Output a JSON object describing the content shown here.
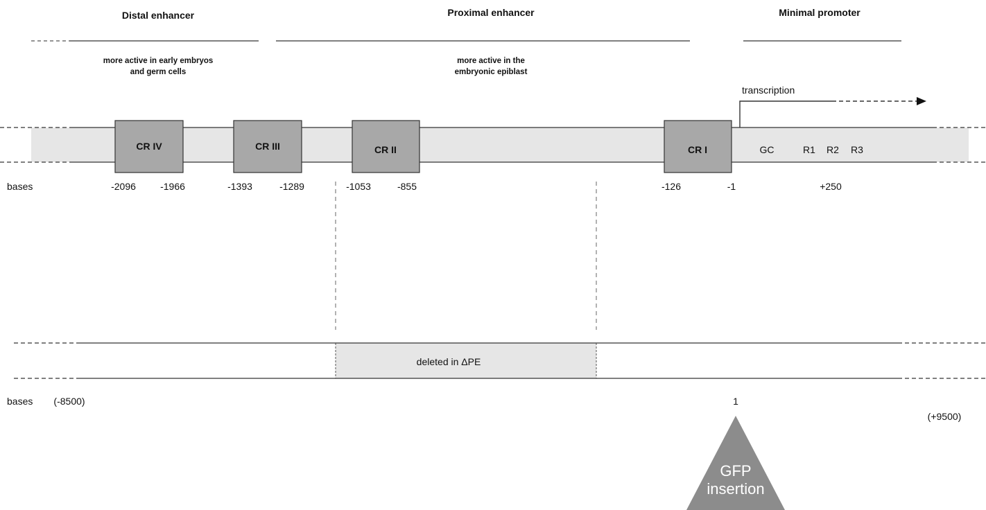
{
  "regions": [
    {
      "title": "Distal enhancer",
      "note_lines": [
        "more active in early embryos",
        "and germ cells"
      ]
    },
    {
      "title": "Proximal enhancer",
      "note_lines": [
        "more active in the",
        "embryonic epiblast"
      ]
    },
    {
      "title": "Minimal promoter",
      "note_lines": []
    }
  ],
  "conserved_regions": [
    {
      "label": "CR IV",
      "start_label": "-2096",
      "end_label": "-1966"
    },
    {
      "label": "CR III",
      "start_label": "-1393",
      "end_label": "-1289"
    },
    {
      "label": "CR II",
      "start_label": "-1053",
      "end_label": "-855"
    },
    {
      "label": "CR I",
      "start_label": "-126",
      "end_label": "-1"
    }
  ],
  "promoter_elements": [
    "GC",
    "R1",
    "R2",
    "R3"
  ],
  "promoter_position_label": "+250",
  "transcription_label": "transcription",
  "bases_label": "bases",
  "lower_track": {
    "deleted_label": "deleted in ΔPE",
    "left_end_label": "(-8500)",
    "right_end_label": "(+9500)",
    "insertion_position_label": "1",
    "insertion_label_lines": [
      "GFP",
      "insertion"
    ]
  },
  "colors": {
    "track_fill": "#e6e6e6",
    "box_fill": "#a8a8a8",
    "line": "#333333",
    "triangle_fill": "#8c8c8c"
  }
}
